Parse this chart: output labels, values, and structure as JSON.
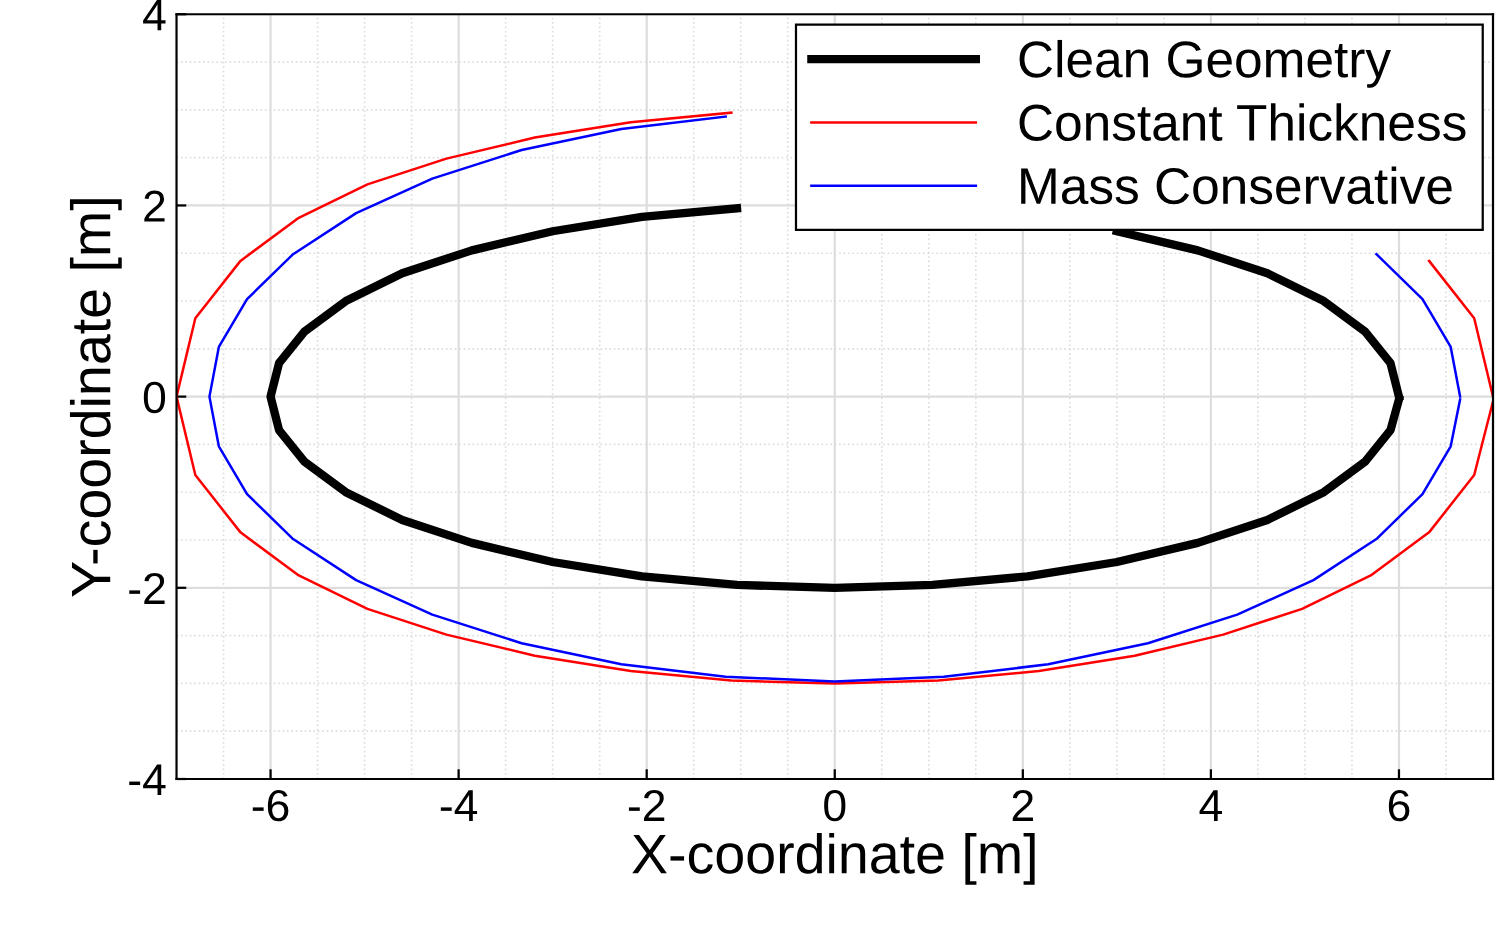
{
  "chart_data": {
    "type": "line",
    "xlabel": "X-coordinate [m]",
    "ylabel": "Y-coordinate [m]",
    "xlim": [
      -7,
      7
    ],
    "ylim": [
      -4,
      4
    ],
    "xticks": [
      -6,
      -4,
      -2,
      0,
      2,
      4,
      6
    ],
    "yticks": [
      -4,
      -2,
      0,
      2,
      4
    ],
    "grid": true,
    "legend": "top right",
    "marker": "none",
    "line_style": "solid",
    "series": [
      {
        "name": "Clean Geometry",
        "color": "#000000",
        "x": [
          6,
          5.91,
          5.64,
          5.2,
          4.6,
          3.86,
          3.0,
          2.05,
          1.04,
          0,
          -1.04,
          -2.05,
          -3.0,
          -3.86,
          -4.6,
          -5.2,
          -5.64,
          -5.91,
          -6,
          -5.91,
          -5.64,
          -5.2,
          -4.6,
          -3.86,
          -3.0,
          -2.05,
          -1.04,
          0,
          1.04,
          2.05,
          3.0,
          3.86,
          4.6,
          5.2,
          5.64,
          5.91,
          6.0
        ],
        "values": [
          0,
          0.35,
          0.68,
          1.0,
          1.29,
          1.53,
          1.73,
          null,
          null,
          null,
          1.97,
          1.88,
          1.73,
          1.53,
          1.29,
          1.0,
          0.68,
          0.35,
          0,
          -0.35,
          -0.68,
          -1.0,
          -1.29,
          -1.53,
          -1.73,
          -1.88,
          -1.97,
          -2,
          -1.97,
          -1.88,
          -1.73,
          -1.53,
          -1.29,
          -1.0,
          -0.68,
          -0.35,
          -0.03
        ]
      },
      {
        "name": "Constant Thickness",
        "color": "#ff0000",
        "x": [
          7,
          6.8,
          6.32,
          5.7,
          4.97,
          4.13,
          3.19,
          2.17,
          1.1,
          0,
          -1.1,
          -2.17,
          -3.19,
          -4.13,
          -4.97,
          -5.7,
          -6.32,
          -6.8,
          -7,
          -6.8,
          -6.32,
          -5.7,
          -4.97,
          -4.13,
          -3.19,
          -2.17,
          -1.1,
          0,
          1.1,
          2.17,
          3.19,
          4.13,
          4.97,
          5.7,
          6.32,
          6.8,
          7.0
        ],
        "values": [
          0,
          0.82,
          1.42,
          null,
          null,
          null,
          null,
          null,
          null,
          null,
          2.97,
          2.87,
          2.71,
          2.49,
          2.22,
          1.87,
          1.42,
          0.82,
          0,
          -0.82,
          -1.42,
          -1.87,
          -2.22,
          -2.49,
          -2.71,
          -2.87,
          -2.97,
          -3,
          -2.97,
          -2.87,
          -2.71,
          -2.49,
          -2.22,
          -1.87,
          -1.42,
          -0.82,
          -0.05
        ]
      },
      {
        "name": "Mass Conservative",
        "color": "#0000ff",
        "x": [
          6.65,
          6.55,
          6.25,
          5.76,
          5.09,
          4.28,
          3.33,
          2.27,
          1.16,
          0,
          -1.16,
          -2.27,
          -3.33,
          -4.28,
          -5.09,
          -5.76,
          -6.25,
          -6.55,
          -6.65,
          -6.55,
          -6.25,
          -5.76,
          -5.09,
          -4.28,
          -3.33,
          -2.27,
          -1.16,
          0,
          1.16,
          2.27,
          3.33,
          4.28,
          5.09,
          5.76,
          6.25,
          6.55,
          6.65
        ],
        "values": [
          0,
          0.52,
          1.02,
          1.49,
          null,
          null,
          null,
          null,
          null,
          null,
          2.93,
          2.8,
          2.58,
          2.28,
          1.92,
          1.49,
          1.02,
          0.52,
          0,
          -0.52,
          -1.02,
          -1.49,
          -1.92,
          -2.28,
          -2.58,
          -2.8,
          -2.93,
          -2.98,
          -2.93,
          -2.8,
          -2.58,
          -2.28,
          -1.92,
          -1.49,
          -1.02,
          -0.52,
          -0.03
        ]
      }
    ]
  }
}
